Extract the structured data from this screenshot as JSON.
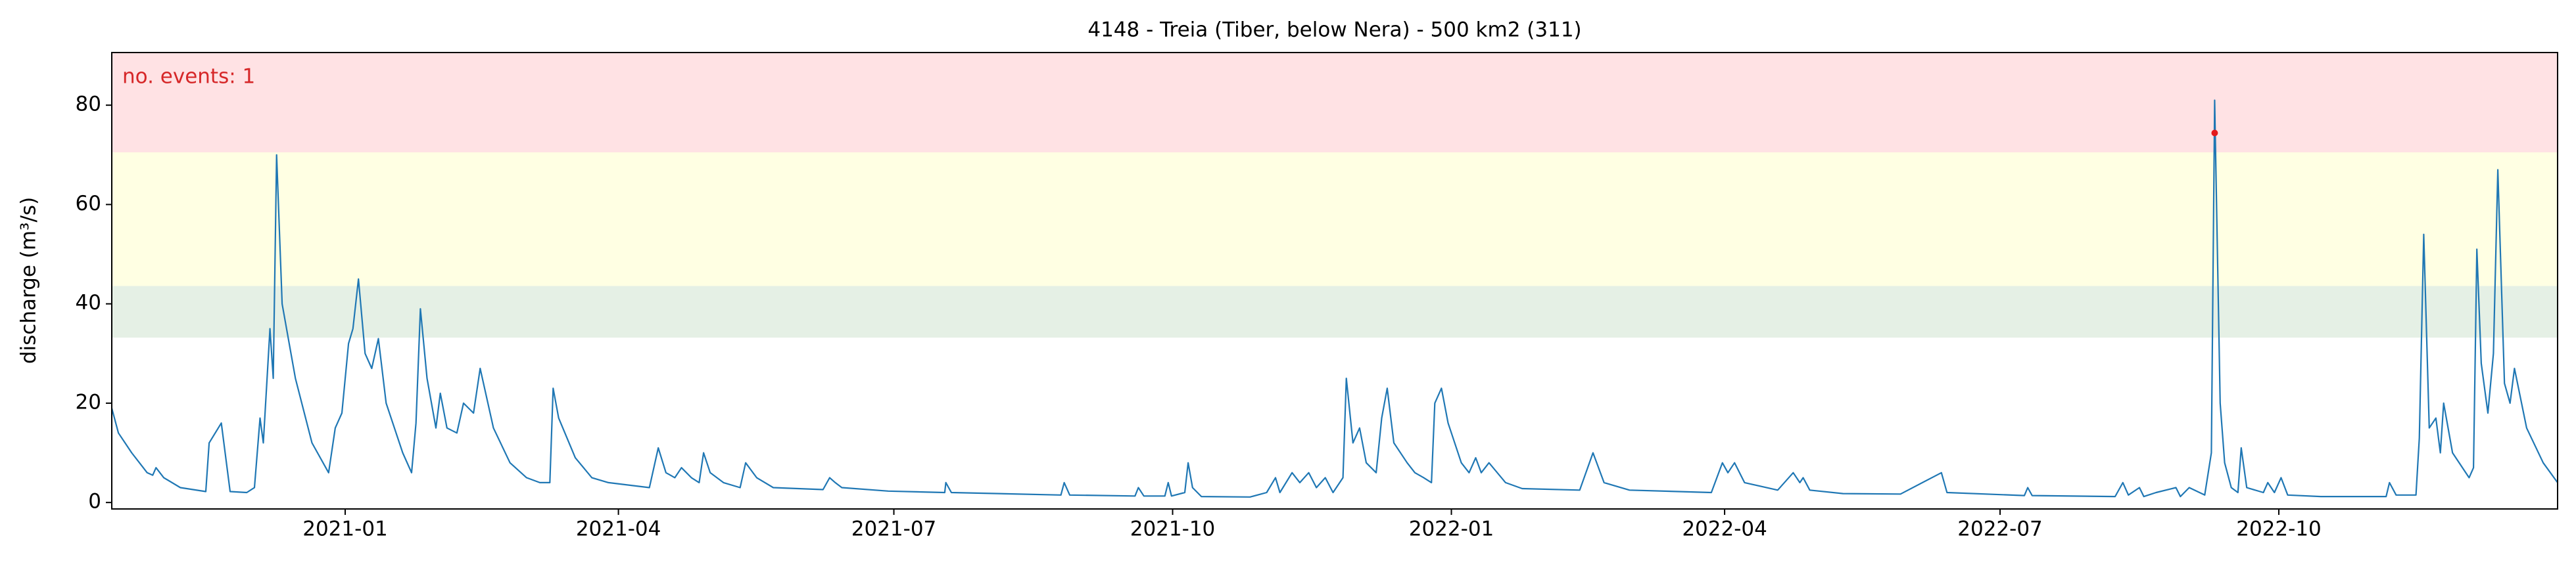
{
  "chart_data": {
    "type": "line",
    "title": "4148 - Treia (Tiber, below Nera) - 500 km2 (311)",
    "ylabel": "discharge (m³/s)",
    "annotation": "no. events: 1",
    "annotation_color": "#d62728",
    "xlim": [
      2020.789,
      2023.0
    ],
    "ylim": [
      -1.3,
      90.6
    ],
    "xticks": [
      {
        "value": 2021.0,
        "label": "2021-01"
      },
      {
        "value": 2021.247,
        "label": "2021-04"
      },
      {
        "value": 2021.496,
        "label": "2021-07"
      },
      {
        "value": 2021.748,
        "label": "2021-10"
      },
      {
        "value": 2022.0,
        "label": "2022-01"
      },
      {
        "value": 2022.247,
        "label": "2022-04"
      },
      {
        "value": 2022.496,
        "label": "2022-07"
      },
      {
        "value": 2022.748,
        "label": "2022-10"
      }
    ],
    "yticks": [
      0,
      20,
      40,
      60,
      80
    ],
    "bands": [
      {
        "from": 33.2,
        "to": 43.6,
        "color": "#e5f0e5"
      },
      {
        "from": 43.6,
        "to": 70.5,
        "color": "#ffffe3"
      },
      {
        "from": 70.5,
        "to": 90.6,
        "color": "#ffe2e4"
      }
    ],
    "events": {
      "x": [
        2022.69
      ],
      "values": [
        74.4
      ],
      "color": "#e41a1c"
    },
    "series": [
      {
        "name": "discharge",
        "color": "#1f77b4",
        "x": [
          2020.789,
          2020.795,
          2020.801,
          2020.807,
          2020.814,
          2020.821,
          2020.826,
          2020.829,
          2020.836,
          2020.851,
          2020.874,
          2020.877,
          2020.888,
          2020.896,
          2020.911,
          2020.918,
          2020.923,
          2020.926,
          2020.932,
          2020.935,
          2020.938,
          2020.943,
          2020.955,
          2020.97,
          2020.985,
          2020.991,
          2020.997,
          2021.003,
          2021.007,
          2021.012,
          2021.018,
          2021.024,
          2021.03,
          2021.037,
          2021.052,
          2021.06,
          2021.064,
          2021.068,
          2021.074,
          2021.082,
          2021.086,
          2021.092,
          2021.101,
          2021.107,
          2021.116,
          2021.122,
          2021.134,
          2021.149,
          2021.164,
          2021.176,
          2021.185,
          2021.188,
          2021.193,
          2021.208,
          2021.223,
          2021.238,
          2021.275,
          2021.283,
          2021.29,
          2021.298,
          2021.304,
          2021.313,
          2021.32,
          2021.324,
          2021.33,
          2021.342,
          2021.357,
          2021.362,
          2021.372,
          2021.387,
          2021.432,
          2021.438,
          2021.443,
          2021.449,
          2021.491,
          2021.542,
          2021.543,
          2021.548,
          2021.647,
          2021.65,
          2021.655,
          2021.714,
          2021.717,
          2021.722,
          2021.741,
          2021.744,
          2021.747,
          2021.759,
          2021.762,
          2021.766,
          2021.774,
          2021.818,
          2021.833,
          2021.841,
          2021.845,
          2021.856,
          2021.863,
          2021.871,
          2021.878,
          2021.886,
          2021.893,
          2021.902,
          2021.905,
          2021.911,
          2021.917,
          2021.923,
          2021.932,
          2021.937,
          2021.942,
          2021.948,
          2021.96,
          2021.967,
          2021.975,
          2021.982,
          2021.985,
          2021.991,
          2021.997,
          2022.009,
          2022.016,
          2022.022,
          2022.027,
          2022.034,
          2022.049,
          2022.064,
          2022.116,
          2022.128,
          2022.138,
          2022.161,
          2022.235,
          2022.245,
          2022.25,
          2022.256,
          2022.265,
          2022.295,
          2022.309,
          2022.315,
          2022.318,
          2022.324,
          2022.354,
          2022.406,
          2022.443,
          2022.448,
          2022.518,
          2022.521,
          2022.525,
          2022.6,
          2022.607,
          2022.612,
          2022.622,
          2022.626,
          2022.637,
          2022.655,
          2022.659,
          2022.667,
          2022.681,
          2022.687,
          2022.69,
          2022.695,
          2022.699,
          2022.705,
          2022.711,
          2022.714,
          2022.719,
          2022.734,
          2022.738,
          2022.744,
          2022.75,
          2022.756,
          2022.786,
          2022.845,
          2022.848,
          2022.854,
          2022.872,
          2022.875,
          2022.879,
          2022.884,
          2022.89,
          2022.894,
          2022.897,
          2022.905,
          2022.92,
          2022.924,
          2022.927,
          2022.931,
          2022.937,
          2022.942,
          2022.946,
          2022.952,
          2022.957,
          2022.961,
          2022.972,
          2022.987,
          2023.0
        ],
        "values": [
          19,
          14,
          12,
          10,
          8,
          6,
          5.5,
          7,
          5,
          3,
          2.2,
          12,
          16,
          2.2,
          2.0,
          3,
          17,
          12,
          35,
          25,
          70,
          40,
          25,
          12,
          6,
          15,
          18,
          32,
          35,
          45,
          30,
          27,
          33,
          20,
          10,
          6,
          16,
          39,
          25,
          15,
          22,
          15,
          14,
          20,
          18,
          27,
          15,
          8,
          5,
          4,
          4,
          23,
          17,
          9,
          5,
          4,
          3,
          11,
          6,
          5,
          7,
          5,
          4,
          10,
          6,
          4,
          3,
          8,
          5,
          3,
          2.6,
          5,
          4,
          3,
          2.3,
          2.0,
          4,
          2,
          1.5,
          4,
          1.5,
          1.3,
          3,
          1.3,
          1.3,
          4,
          1.3,
          2,
          8,
          3,
          1.2,
          1.1,
          2,
          5,
          2,
          6,
          4,
          6,
          3,
          5,
          2,
          5,
          25,
          12,
          15,
          8,
          6,
          17,
          23,
          12,
          8,
          6,
          5,
          4,
          20,
          23,
          16,
          8,
          6,
          9,
          6,
          8,
          4,
          2.8,
          2.5,
          10,
          4,
          2.5,
          2,
          8,
          6,
          8,
          4,
          2.5,
          6,
          4,
          5,
          2.5,
          1.8,
          1.7,
          6,
          2,
          1.4,
          3,
          1.4,
          1.2,
          4,
          1.5,
          3,
          1.2,
          2,
          3,
          1.2,
          3,
          1.5,
          10,
          81,
          20,
          8,
          3,
          2,
          11,
          3,
          2,
          4,
          2,
          5,
          1.5,
          1.2,
          1.2,
          4,
          1.5,
          1.5,
          13,
          54,
          15,
          17,
          10,
          20,
          10,
          5,
          7,
          51,
          28,
          18,
          30,
          67,
          24,
          20,
          27,
          15,
          8,
          4
        ]
      }
    ]
  }
}
